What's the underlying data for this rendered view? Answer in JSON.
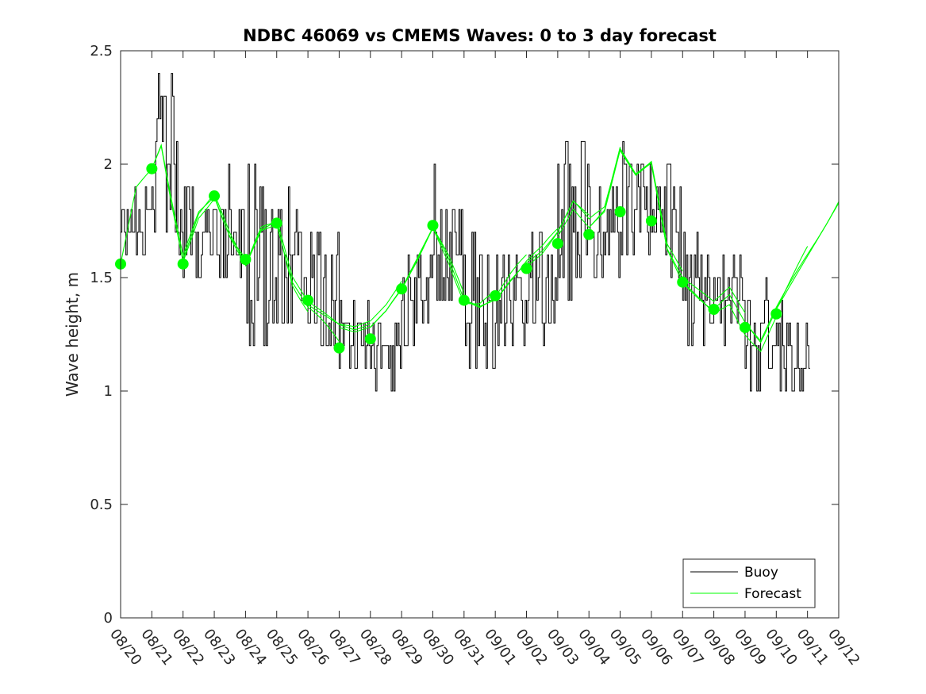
{
  "chart_data": {
    "type": "line",
    "title": "NDBC 46069 vs CMEMS Waves: 0 to 3 day forecast",
    "xlabel": "",
    "ylabel": "Wave height, m",
    "ylim": [
      0,
      2.5
    ],
    "yticks": [
      "0",
      "0.5",
      "1",
      "1.5",
      "2",
      "2.5"
    ],
    "xlim_days": [
      0,
      23
    ],
    "xticks": [
      "08/20",
      "08/21",
      "08/22",
      "08/23",
      "08/24",
      "08/25",
      "08/26",
      "08/27",
      "08/28",
      "08/29",
      "08/30",
      "08/31",
      "09/01",
      "09/02",
      "09/03",
      "09/04",
      "09/05",
      "09/06",
      "09/07",
      "09/08",
      "09/09",
      "09/10",
      "09/11",
      "09/12"
    ],
    "grid": false,
    "legend": {
      "position": "bottom-right",
      "entries": [
        "Buoy",
        "Forecast"
      ]
    },
    "colors": {
      "buoy": "#000000",
      "forecast": "#00ff00",
      "axis": "#262626"
    },
    "buoy_daily_envelope": {
      "day": [
        0,
        1,
        2,
        3,
        4,
        5,
        6,
        7,
        8,
        9,
        10,
        11,
        12,
        13,
        14,
        15,
        16,
        17,
        18,
        19,
        20,
        21,
        22
      ],
      "min": [
        1.6,
        1.6,
        1.4,
        1.5,
        1.2,
        1.3,
        1.1,
        1.1,
        1.0,
        1.2,
        1.3,
        1.1,
        1.2,
        1.2,
        1.3,
        1.5,
        1.5,
        1.5,
        1.2,
        1.2,
        1.0,
        1.0,
        1.1
      ],
      "max": [
        1.9,
        2.4,
        1.9,
        2.0,
        2.0,
        1.9,
        1.7,
        1.4,
        1.3,
        1.6,
        2.0,
        1.7,
        1.6,
        1.7,
        2.1,
        1.9,
        2.1,
        2.0,
        1.7,
        1.6,
        1.5,
        1.4,
        1.3
      ],
      "end_day": 22.1
    },
    "series": [
      {
        "name": "Forecast",
        "x": [
          0,
          0.5,
          1,
          1.3,
          1.6,
          2,
          2.5,
          3,
          3.5,
          4,
          4.5,
          5,
          5.5,
          6,
          6.5,
          7,
          7.5,
          8,
          8.5,
          9,
          9.5,
          10,
          10.5,
          11,
          11.5,
          12,
          12.5,
          13,
          13.5,
          14,
          14.5,
          15,
          15.5,
          16,
          16.5,
          17,
          17.5,
          18,
          18.5,
          19,
          19.5,
          20,
          20.5,
          21,
          21.5,
          22,
          22.5,
          23
        ],
        "y": [
          1.56,
          1.9,
          1.98,
          2.08,
          1.85,
          1.58,
          1.78,
          1.86,
          1.68,
          1.55,
          1.72,
          1.76,
          1.5,
          1.38,
          1.33,
          1.28,
          1.26,
          1.28,
          1.35,
          1.45,
          1.58,
          1.72,
          1.58,
          1.4,
          1.37,
          1.4,
          1.48,
          1.55,
          1.6,
          1.68,
          1.8,
          1.72,
          1.79,
          2.06,
          1.95,
          2.0,
          1.62,
          1.48,
          1.42,
          1.36,
          1.42,
          1.3,
          1.22,
          1.36,
          1.48,
          1.6,
          1.72,
          1.84
        ]
      },
      {
        "name": "Forecast day markers",
        "x": [
          0,
          1,
          2,
          3,
          4,
          5,
          6,
          7,
          8,
          9,
          10,
          11,
          12,
          13,
          14,
          15,
          16,
          17,
          18,
          19,
          20,
          21
        ],
        "y": [
          1.56,
          1.98,
          1.56,
          1.86,
          1.58,
          1.74,
          1.4,
          1.19,
          1.23,
          1.45,
          1.73,
          1.4,
          1.42,
          1.54,
          1.65,
          1.69,
          1.79,
          1.75,
          1.48,
          1.36,
          1.28,
          1.34
        ]
      }
    ]
  }
}
